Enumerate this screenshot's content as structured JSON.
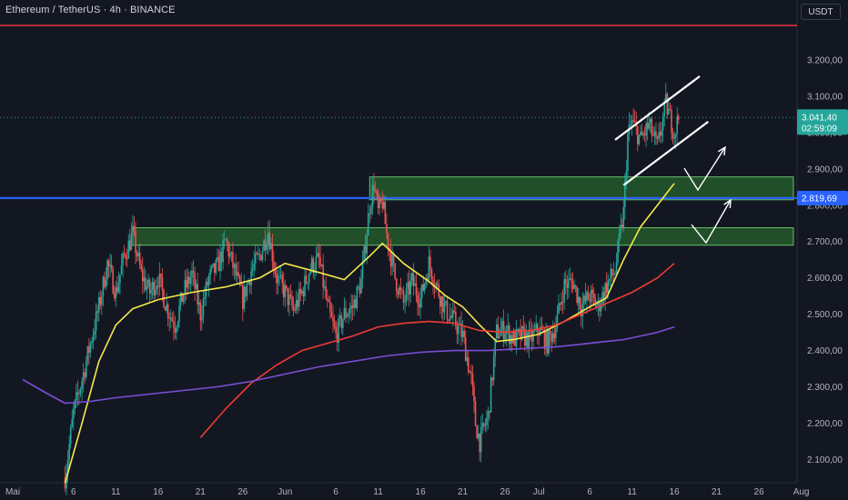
{
  "header": {
    "title": "Ethereum / TetherUS · 4h · BINANCE",
    "currency_button": "USDT"
  },
  "colors": {
    "background": "#131722",
    "up": "#26a69a",
    "down": "#ef5350",
    "ema_fast": "#f5e84a",
    "ema_mid": "#ef3b36",
    "ema_slow": "#7b4fd6",
    "level_line": "#2962ff",
    "top_line": "#f23645",
    "zone_fill": "#2e7d32"
  },
  "price_tags": {
    "last_price": "3.041,40",
    "countdown": "02:59:09",
    "level": "2.819,69"
  },
  "chart_data": {
    "type": "candlestick",
    "title": "Ethereum / TetherUS · 4h · BINANCE",
    "y_unit": "USDT",
    "ylim": [
      2035,
      3330
    ],
    "y_ticks": [
      2100,
      2200,
      2300,
      2400,
      2500,
      2600,
      2700,
      2800,
      2900,
      3000,
      3100,
      3200
    ],
    "y_tick_labels": [
      "2.100,00",
      "2.200,00",
      "2.300,00",
      "2.400,00",
      "2.500,00",
      "2.600,00",
      "2.700,00",
      "2.800,00",
      "2.900,00",
      "3.000,00",
      "3.100,00",
      "3.200,00"
    ],
    "x_tick_labels": [
      "Mai",
      "6",
      "11",
      "16",
      "21",
      "26",
      "Jun",
      "6",
      "11",
      "16",
      "21",
      "26",
      "Jul",
      "6",
      "11",
      "16",
      "21",
      "26",
      "Aug"
    ],
    "x_tick_days": [
      0,
      6,
      11,
      16,
      21,
      26,
      31,
      37,
      42,
      47,
      52,
      57,
      61,
      67,
      72,
      77,
      82,
      87,
      92
    ],
    "price_points": [
      [
        5.0,
        2050
      ],
      [
        6.0,
        2230
      ],
      [
        7.0,
        2320
      ],
      [
        8.0,
        2420
      ],
      [
        9.0,
        2520
      ],
      [
        10.0,
        2640
      ],
      [
        11.0,
        2560
      ],
      [
        12.0,
        2660
      ],
      [
        13.0,
        2720
      ],
      [
        14.0,
        2610
      ],
      [
        15.0,
        2560
      ],
      [
        16.0,
        2600
      ],
      [
        17.0,
        2520
      ],
      [
        18.0,
        2470
      ],
      [
        19.0,
        2560
      ],
      [
        20.0,
        2610
      ],
      [
        21.0,
        2500
      ],
      [
        22.0,
        2600
      ],
      [
        23.0,
        2630
      ],
      [
        24.0,
        2700
      ],
      [
        25.0,
        2620
      ],
      [
        26.0,
        2540
      ],
      [
        27.0,
        2620
      ],
      [
        28.0,
        2660
      ],
      [
        29.0,
        2730
      ],
      [
        30.0,
        2600
      ],
      [
        31.0,
        2560
      ],
      [
        32.0,
        2510
      ],
      [
        33.0,
        2560
      ],
      [
        34.0,
        2630
      ],
      [
        35.0,
        2650
      ],
      [
        36.0,
        2520
      ],
      [
        37.0,
        2440
      ],
      [
        38.0,
        2500
      ],
      [
        39.0,
        2520
      ],
      [
        40.0,
        2590
      ],
      [
        41.0,
        2800
      ],
      [
        41.5,
        2860
      ],
      [
        42.0,
        2780
      ],
      [
        42.5,
        2810
      ],
      [
        43.0,
        2720
      ],
      [
        44.0,
        2600
      ],
      [
        45.0,
        2530
      ],
      [
        46.0,
        2590
      ],
      [
        47.0,
        2540
      ],
      [
        48.0,
        2640
      ],
      [
        49.0,
        2570
      ],
      [
        50.0,
        2510
      ],
      [
        51.0,
        2480
      ],
      [
        52.0,
        2440
      ],
      [
        53.0,
        2320
      ],
      [
        53.5,
        2200
      ],
      [
        54.0,
        2150
      ],
      [
        55.0,
        2220
      ],
      [
        56.0,
        2450
      ],
      [
        57.0,
        2460
      ],
      [
        58.0,
        2430
      ],
      [
        59.0,
        2440
      ],
      [
        60.0,
        2430
      ],
      [
        61.0,
        2460
      ],
      [
        62.0,
        2420
      ],
      [
        63.0,
        2470
      ],
      [
        64.0,
        2580
      ],
      [
        65.0,
        2590
      ],
      [
        66.0,
        2520
      ],
      [
        67.0,
        2550
      ],
      [
        68.0,
        2520
      ],
      [
        69.0,
        2580
      ],
      [
        70.0,
        2620
      ],
      [
        71.0,
        2780
      ],
      [
        71.5,
        2990
      ],
      [
        72.0,
        3030
      ],
      [
        73.0,
        2980
      ],
      [
        74.0,
        3020
      ],
      [
        75.0,
        2960
      ],
      [
        76.0,
        3080
      ],
      [
        77.0,
        3000
      ],
      [
        77.5,
        3041.4
      ]
    ],
    "series": [
      {
        "name": "",
        "type": "line",
        "points": [
          [
            5,
            2035
          ],
          [
            7,
            2200
          ],
          [
            9,
            2370
          ],
          [
            11,
            2470
          ],
          [
            13,
            2515
          ],
          [
            16,
            2540
          ],
          [
            20,
            2560
          ],
          [
            24,
            2575
          ],
          [
            28,
            2600
          ],
          [
            31,
            2640
          ],
          [
            35,
            2615
          ],
          [
            38,
            2595
          ],
          [
            41,
            2660
          ],
          [
            42.5,
            2695
          ],
          [
            45,
            2640
          ],
          [
            48,
            2590
          ],
          [
            50,
            2550
          ],
          [
            52,
            2520
          ],
          [
            54,
            2470
          ],
          [
            56,
            2425
          ],
          [
            58,
            2430
          ],
          [
            61,
            2445
          ],
          [
            64,
            2480
          ],
          [
            67,
            2520
          ],
          [
            69,
            2545
          ],
          [
            71,
            2650
          ],
          [
            73,
            2740
          ],
          [
            75,
            2800
          ],
          [
            77,
            2860
          ]
        ]
      },
      {
        "name": "",
        "type": "line",
        "points": [
          [
            21,
            2160
          ],
          [
            24,
            2240
          ],
          [
            27,
            2310
          ],
          [
            30,
            2360
          ],
          [
            33,
            2400
          ],
          [
            36,
            2420
          ],
          [
            39,
            2440
          ],
          [
            42,
            2465
          ],
          [
            45,
            2475
          ],
          [
            48,
            2480
          ],
          [
            51,
            2475
          ],
          [
            54,
            2455
          ],
          [
            57,
            2450
          ],
          [
            60,
            2455
          ],
          [
            63,
            2470
          ],
          [
            66,
            2500
          ],
          [
            69,
            2530
          ],
          [
            72,
            2560
          ],
          [
            75,
            2600
          ],
          [
            77,
            2640
          ]
        ]
      },
      {
        "name": "",
        "type": "line",
        "points": [
          [
            0,
            2320
          ],
          [
            3,
            2280
          ],
          [
            5,
            2255
          ],
          [
            8,
            2260
          ],
          [
            11,
            2270
          ],
          [
            15,
            2280
          ],
          [
            19,
            2290
          ],
          [
            23,
            2300
          ],
          [
            27,
            2315
          ],
          [
            31,
            2335
          ],
          [
            35,
            2355
          ],
          [
            39,
            2370
          ],
          [
            43,
            2385
          ],
          [
            47,
            2395
          ],
          [
            51,
            2400
          ],
          [
            55,
            2400
          ],
          [
            59,
            2405
          ],
          [
            63,
            2410
          ],
          [
            67,
            2420
          ],
          [
            71,
            2430
          ],
          [
            75,
            2450
          ],
          [
            77,
            2465
          ]
        ]
      }
    ],
    "zones": [
      {
        "from": 2815,
        "to": 2878,
        "start_day": 41
      },
      {
        "from": 2690,
        "to": 2738,
        "start_day": 13
      }
    ],
    "horizontal_levels": [
      {
        "value": 2819.69
      },
      {
        "value": 3295
      }
    ],
    "channel": [
      [
        [
          70,
          2980
        ],
        [
          80,
          3155
        ]
      ],
      [
        [
          71,
          2855
        ],
        [
          81,
          3030
        ]
      ]
    ],
    "grid": false
  }
}
